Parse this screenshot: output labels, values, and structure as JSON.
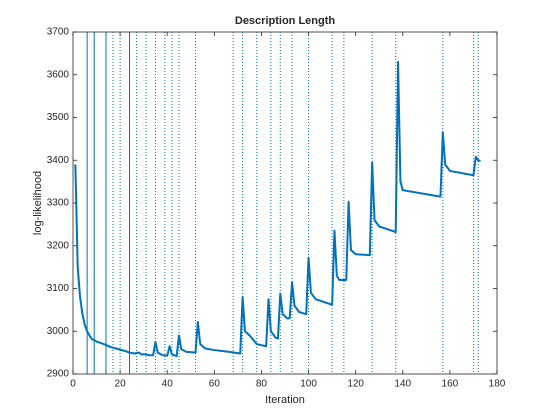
{
  "chart_data": {
    "type": "line",
    "title": "Description Length",
    "xlabel": "Iteration",
    "ylabel": "log-likelihood",
    "xlim": [
      0,
      180
    ],
    "xticks": [
      0,
      20,
      40,
      60,
      80,
      100,
      120,
      140,
      160,
      180
    ],
    "ylim": [
      2900,
      3700
    ],
    "yticks": [
      2900,
      3000,
      3100,
      3200,
      3300,
      3400,
      3500,
      3600,
      3700
    ],
    "color": "#0072bd",
    "solid_lines": [
      6,
      9,
      14,
      24
    ],
    "dotted_lines": [
      17,
      20,
      27,
      31,
      35,
      39,
      42,
      45,
      52,
      68,
      72,
      78,
      84,
      88,
      93,
      100,
      110,
      115,
      127,
      137,
      157,
      170,
      172
    ],
    "x": [
      1,
      2,
      3,
      4,
      5,
      6,
      7,
      8,
      10,
      12,
      14,
      16,
      18,
      20,
      22,
      24,
      26,
      28,
      29,
      31,
      32,
      34,
      35,
      36,
      38,
      40,
      41,
      42,
      44,
      45,
      46,
      48,
      52,
      53,
      54,
      56,
      60,
      66,
      71,
      72,
      73,
      75,
      78,
      82,
      83,
      84,
      86,
      87,
      88,
      89,
      91,
      92,
      93,
      94,
      96,
      99,
      100,
      101,
      103,
      110,
      111,
      112,
      113,
      116,
      117,
      118,
      120,
      126,
      127,
      128,
      130,
      137,
      138,
      139,
      140,
      156,
      157,
      158,
      160,
      170,
      171,
      172,
      173
    ],
    "values": [
      3390,
      3150,
      3080,
      3040,
      3015,
      3000,
      2990,
      2982,
      2976,
      2972,
      2968,
      2963,
      2960,
      2957,
      2954,
      2950,
      2948,
      2950,
      2946,
      2946,
      2944,
      2944,
      2975,
      2950,
      2944,
      2943,
      2965,
      2946,
      2942,
      2990,
      2958,
      2952,
      2950,
      3022,
      2970,
      2960,
      2956,
      2952,
      2948,
      3080,
      3000,
      2990,
      2970,
      2965,
      3075,
      3000,
      2985,
      2983,
      3088,
      3040,
      3030,
      3030,
      3115,
      3060,
      3045,
      3040,
      3172,
      3090,
      3075,
      3062,
      3235,
      3130,
      3120,
      3120,
      3303,
      3190,
      3180,
      3178,
      3395,
      3260,
      3245,
      3232,
      3630,
      3350,
      3330,
      3315,
      3465,
      3390,
      3375,
      3365,
      3408,
      3400,
      3398
    ]
  }
}
